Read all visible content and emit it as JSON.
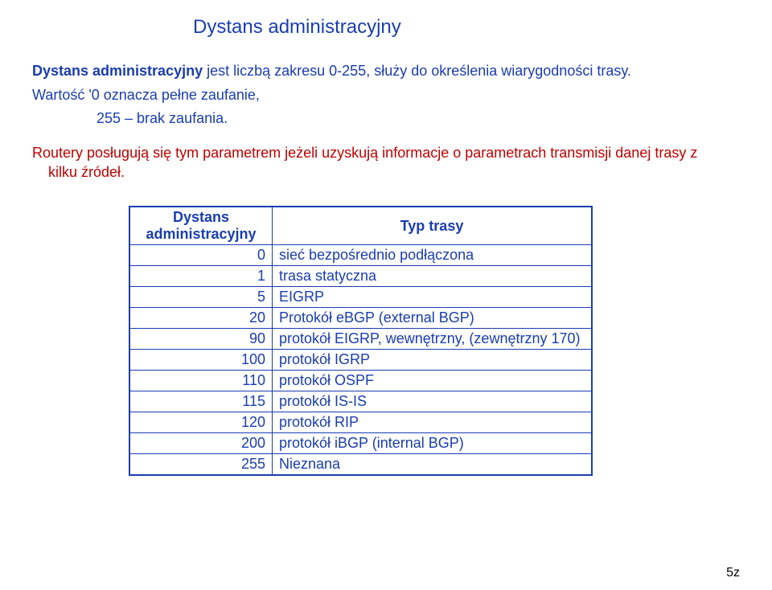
{
  "title": "Dystans administracyjny",
  "para1_part1": "Dystans administracyjny",
  "para1_part2": " jest liczbą zakresu 0-255, służy do określenia wiarygodności trasy.",
  "para1_line2": "Wartość  '0  oznacza pełne zaufanie,",
  "para1_line3": "255 – brak zaufania.",
  "para2_line1": "Routery posługują  się  tym parametrem jeżeli uzyskują informacje o parametrach transmisji danej trasy z",
  "para2_line2": "kilku źródeł.",
  "table": {
    "head_dist_line1": "Dystans",
    "head_dist_line2": "administracyjny",
    "head_type": "Typ trasy",
    "rows": [
      {
        "dist": "0",
        "type": "sieć bezpośrednio podłączona"
      },
      {
        "dist": "1",
        "type": "trasa statyczna"
      },
      {
        "dist": "5",
        "type": "EIGRP"
      },
      {
        "dist": "20",
        "type": "Protokół eBGP (external BGP)"
      },
      {
        "dist": "90",
        "type": "protokół EIGRP, wewnętrzny, (zewnętrzny 170)"
      },
      {
        "dist": "100",
        "type": "protokół IGRP"
      },
      {
        "dist": "110",
        "type": "protokół OSPF"
      },
      {
        "dist": "115",
        "type": "protokół IS-IS"
      },
      {
        "dist": "120",
        "type": "protokół RIP"
      },
      {
        "dist": "200",
        "type": "protokół iBGP (internal BGP)"
      },
      {
        "dist": "255",
        "type": "Nieznana"
      }
    ]
  },
  "footer": "5z",
  "colors": {
    "primary": "#1a3db3",
    "accent": "#c00000",
    "background": "#ffffff",
    "footer": "#000000"
  },
  "fonts": {
    "title_size_pt": 24,
    "body_size_pt": 18,
    "footer_size_pt": 16,
    "family": "Arial"
  }
}
